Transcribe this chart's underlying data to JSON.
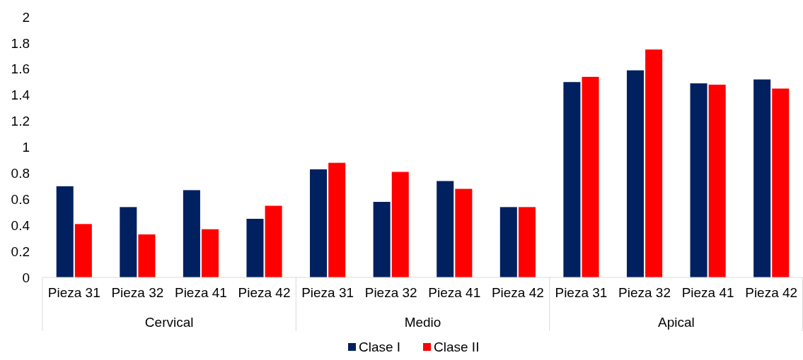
{
  "chart_data": {
    "type": "bar",
    "categories": [
      "Pieza 31",
      "Pieza 32",
      "Pieza 41",
      "Pieza 42",
      "Pieza 31",
      "Pieza 32",
      "Pieza 41",
      "Pieza 42",
      "Pieza 31",
      "Pieza 32",
      "Pieza 41",
      "Pieza 42"
    ],
    "series": [
      {
        "name": "Clase I",
        "color": "#002060",
        "values": [
          0.7,
          0.54,
          0.67,
          0.45,
          0.83,
          0.58,
          0.74,
          0.54,
          1.5,
          1.59,
          1.49,
          1.52
        ]
      },
      {
        "name": "Clase II",
        "color": "#ff0000",
        "values": [
          0.41,
          0.33,
          0.37,
          0.55,
          0.88,
          0.81,
          0.68,
          0.54,
          1.54,
          1.75,
          1.48,
          1.45
        ]
      }
    ],
    "annotations": [
      "Cervical",
      "Medio",
      "Apical"
    ],
    "ylim": [
      0,
      2
    ],
    "yticks": [
      0,
      0.2,
      0.4,
      0.6,
      0.8,
      1,
      1.2,
      1.4,
      1.6,
      1.8,
      2
    ],
    "grid": false,
    "legend": "bottom"
  }
}
